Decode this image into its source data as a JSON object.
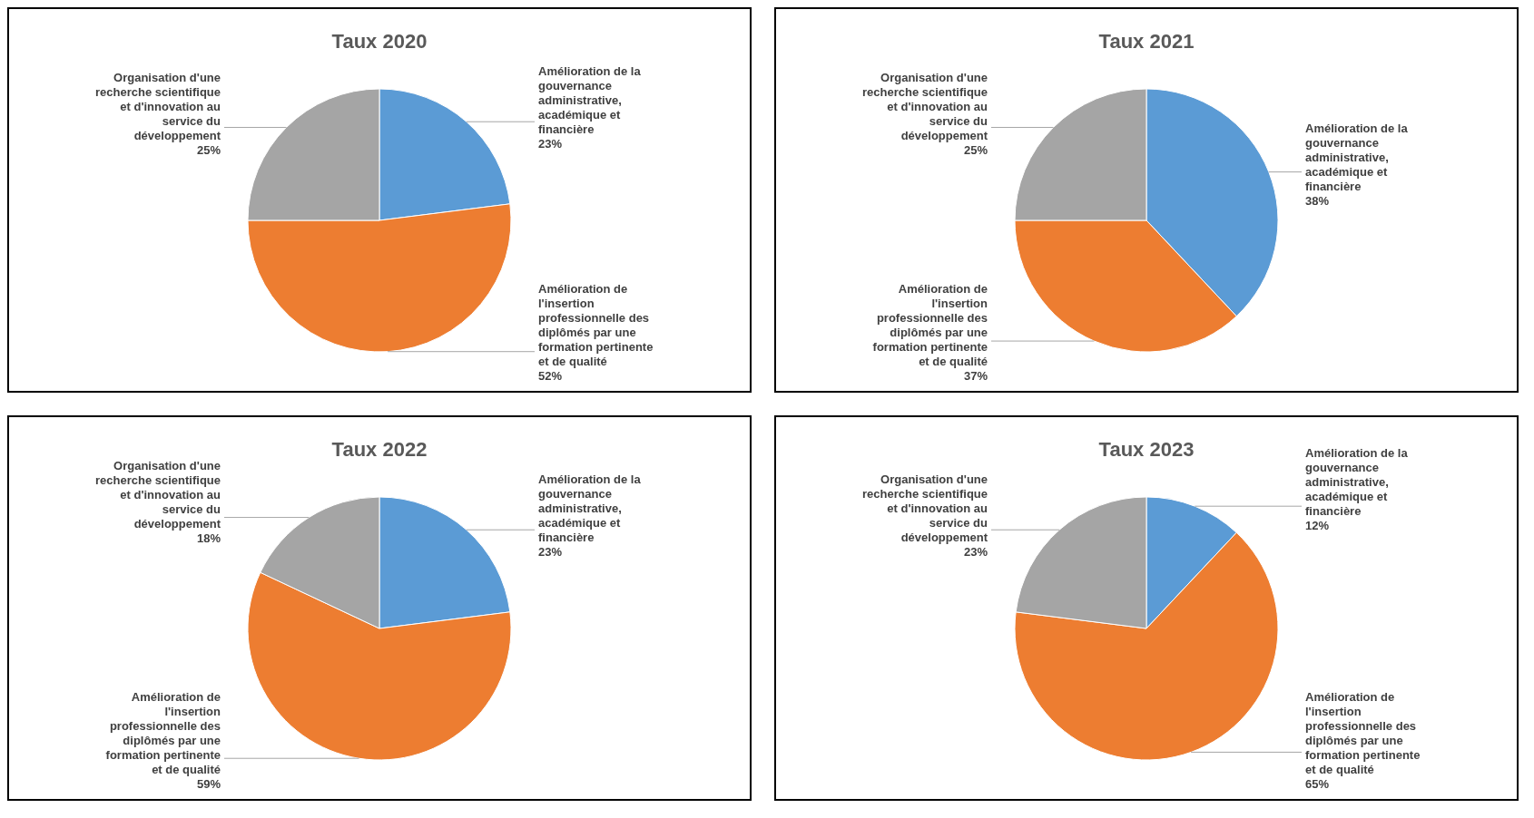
{
  "chart_data": [
    {
      "type": "pie",
      "title": "Taux 2020",
      "categories": [
        "Amélioration de la gouvernance administrative, académique et financière",
        "Amélioration de l'insertion professionnelle des diplômés par une formation pertinente et de qualité",
        "Organisation d'une recherche scientifique et d'innovation au service du développement"
      ],
      "values": [
        23,
        52,
        25
      ],
      "value_labels": [
        "23%",
        "52%",
        "25%"
      ],
      "colors": [
        "#5b9bd5",
        "#ed7d31",
        "#a5a5a5"
      ]
    },
    {
      "type": "pie",
      "title": "Taux 2021",
      "categories": [
        "Amélioration de la gouvernance administrative, académique et financière",
        "Amélioration de l'insertion professionnelle des diplômés par une formation pertinente et de qualité",
        "Organisation d'une recherche scientifique et d'innovation au service du développement"
      ],
      "values": [
        38,
        37,
        25
      ],
      "value_labels": [
        "38%",
        "37%",
        "25%"
      ],
      "colors": [
        "#5b9bd5",
        "#ed7d31",
        "#a5a5a5"
      ]
    },
    {
      "type": "pie",
      "title": "Taux 2022",
      "categories": [
        "Amélioration de la gouvernance administrative, académique et financière",
        "Amélioration de l'insertion professionnelle des diplômés par une formation pertinente et de qualité",
        "Organisation d'une recherche scientifique et d'innovation au service du développement"
      ],
      "values": [
        23,
        59,
        18
      ],
      "value_labels": [
        "23%",
        "59%",
        "18%"
      ],
      "colors": [
        "#5b9bd5",
        "#ed7d31",
        "#a5a5a5"
      ]
    },
    {
      "type": "pie",
      "title": "Taux 2023",
      "categories": [
        "Amélioration de la gouvernance administrative, académique et financière",
        "Amélioration de l'insertion professionnelle des diplômés par une formation pertinente et de qualité",
        "Organisation d'une recherche scientifique et d'innovation au service du développement"
      ],
      "values": [
        12,
        65,
        23
      ],
      "value_labels": [
        "12%",
        "65%",
        "23%"
      ],
      "colors": [
        "#5b9bd5",
        "#ed7d31",
        "#a5a5a5"
      ]
    }
  ]
}
